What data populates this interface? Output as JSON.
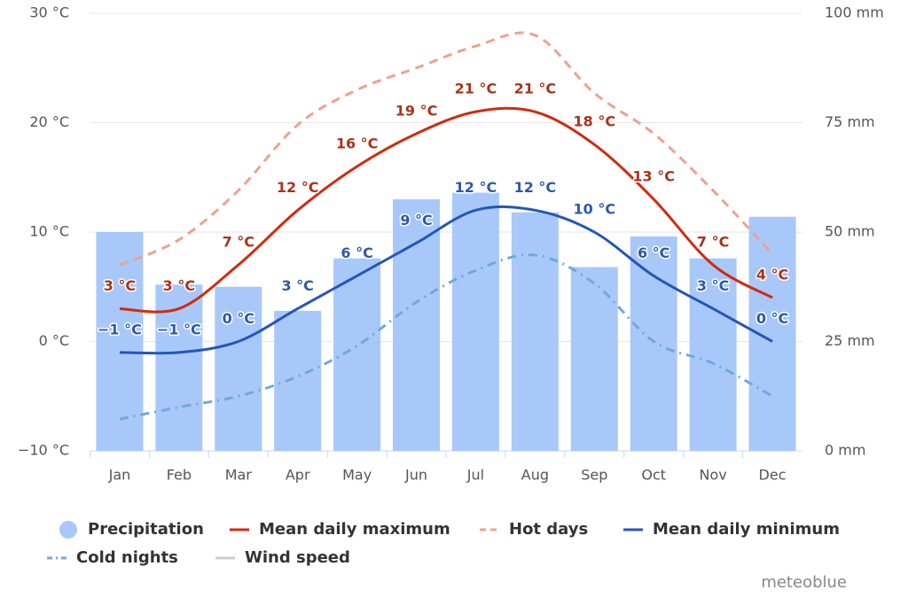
{
  "chart_data": {
    "type": "bar",
    "categories": [
      "Jan",
      "Feb",
      "Mar",
      "Apr",
      "May",
      "Jun",
      "Jul",
      "Aug",
      "Sep",
      "Oct",
      "Nov",
      "Dec"
    ],
    "ylim": [
      -10,
      30
    ],
    "yticks": [
      {
        "value": -10,
        "label": "−10 °C"
      },
      {
        "value": 0,
        "label": "0 °C"
      },
      {
        "value": 10,
        "label": "10 °C"
      },
      {
        "value": 20,
        "label": "20 °C"
      },
      {
        "value": 30,
        "label": "30 °C"
      }
    ],
    "y2lim": [
      0,
      100
    ],
    "y2ticks": [
      {
        "value": 0,
        "label": "0 mm"
      },
      {
        "value": 25,
        "label": "25 mm"
      },
      {
        "value": 50,
        "label": "50 mm"
      },
      {
        "value": 75,
        "label": "75 mm"
      },
      {
        "value": 100,
        "label": "100 mm"
      }
    ],
    "grid": true,
    "series": [
      {
        "name": "Precipitation",
        "type": "bar",
        "axis": "y2",
        "color": "#a8c8fa",
        "values": [
          50,
          38,
          37.5,
          32,
          44,
          57.5,
          59,
          54.5,
          42,
          49,
          44,
          53.5
        ]
      },
      {
        "name": "Mean daily maximum",
        "type": "line",
        "color": "#d12b0f",
        "dash": "solid",
        "values": [
          3,
          3,
          7,
          12,
          16,
          19,
          21,
          21,
          18,
          13,
          7,
          4
        ],
        "value_labels": [
          "3 °C",
          "3 °C",
          "7 °C",
          "12 °C",
          "16 °C",
          "19 °C",
          "21 °C",
          "21 °C",
          "18 °C",
          "13 °C",
          "7 °C",
          "4 °C"
        ],
        "label_color": "#a8341a"
      },
      {
        "name": "Hot days",
        "type": "line",
        "color": "#f0a090",
        "dash": "dashed",
        "values": [
          7,
          9.3,
          13.8,
          19.8,
          23,
          25,
          27,
          28,
          22.7,
          19,
          13.8,
          8
        ]
      },
      {
        "name": "Mean daily minimum",
        "type": "line",
        "color": "#2456b8",
        "dash": "solid",
        "values": [
          -1,
          -1,
          0,
          3,
          6,
          9,
          12,
          12,
          10,
          6,
          3,
          0
        ],
        "value_labels": [
          "−1 °C",
          "−1 °C",
          "0 °C",
          "3 °C",
          "6 °C",
          "9 °C",
          "12 °C",
          "12 °C",
          "10 °C",
          "6 °C",
          "3 °C",
          "0 °C"
        ],
        "label_color": "#2c5aa8"
      },
      {
        "name": "Cold nights",
        "type": "line",
        "color": "#6fa8dc",
        "dash": "dashdot",
        "values": [
          -7.1,
          -6,
          -5,
          -3.2,
          -0.4,
          3.6,
          6.5,
          7.9,
          5.3,
          0,
          -2,
          -5
        ]
      },
      {
        "name": "Wind speed",
        "type": "line",
        "color": "#cccccc",
        "dash": "solid",
        "hidden": true
      }
    ],
    "credit": "meteoblue"
  }
}
